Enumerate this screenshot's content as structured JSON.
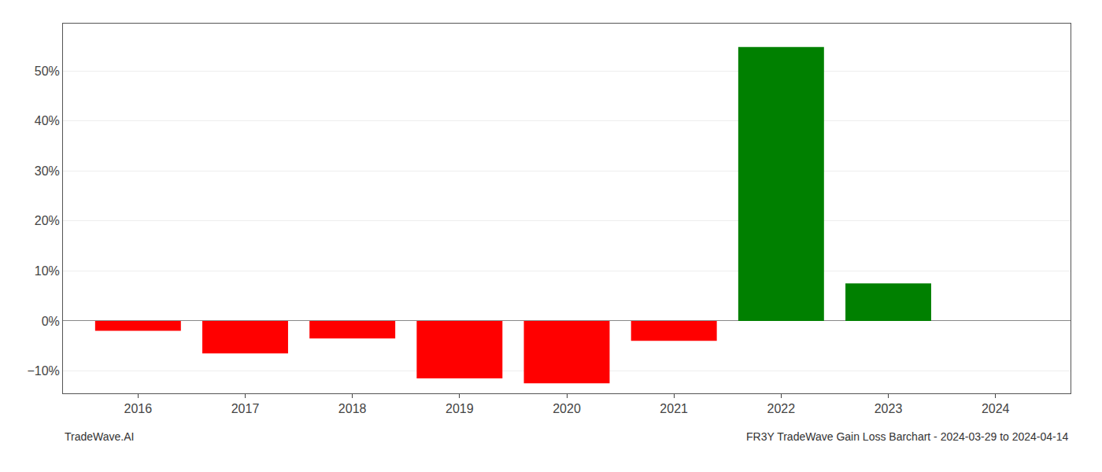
{
  "chart_data": {
    "type": "bar",
    "title": "FR3Y TradeWave Gain Loss Barchart - 2024-03-29 to 2024-04-14",
    "annotations": [
      "TradeWave.AI"
    ],
    "x": [
      2016,
      2017,
      2018,
      2019,
      2020,
      2021,
      2022,
      2023,
      2024
    ],
    "values": [
      -0.02,
      -0.065,
      -0.035,
      -0.115,
      -0.125,
      -0.04,
      0.548,
      0.075,
      null
    ],
    "colors": [
      "#ff0000",
      "#ff0000",
      "#ff0000",
      "#ff0000",
      "#ff0000",
      "#ff0000",
      "#008000",
      "#008000",
      null
    ],
    "xlim": [
      2015.3,
      2024.7
    ],
    "xticks": [
      2016,
      2017,
      2018,
      2019,
      2020,
      2021,
      2022,
      2023,
      2024
    ],
    "ylim": [
      -0.145,
      0.595
    ],
    "yticks": [
      {
        "value": -0.1,
        "label": "−10%"
      },
      {
        "value": 0.0,
        "label": "0%"
      },
      {
        "value": 0.1,
        "label": "10%"
      },
      {
        "value": 0.2,
        "label": "20%"
      },
      {
        "value": 0.3,
        "label": "30%"
      },
      {
        "value": 0.4,
        "label": "40%"
      },
      {
        "value": 0.5,
        "label": "50%"
      }
    ],
    "grid": "y"
  }
}
